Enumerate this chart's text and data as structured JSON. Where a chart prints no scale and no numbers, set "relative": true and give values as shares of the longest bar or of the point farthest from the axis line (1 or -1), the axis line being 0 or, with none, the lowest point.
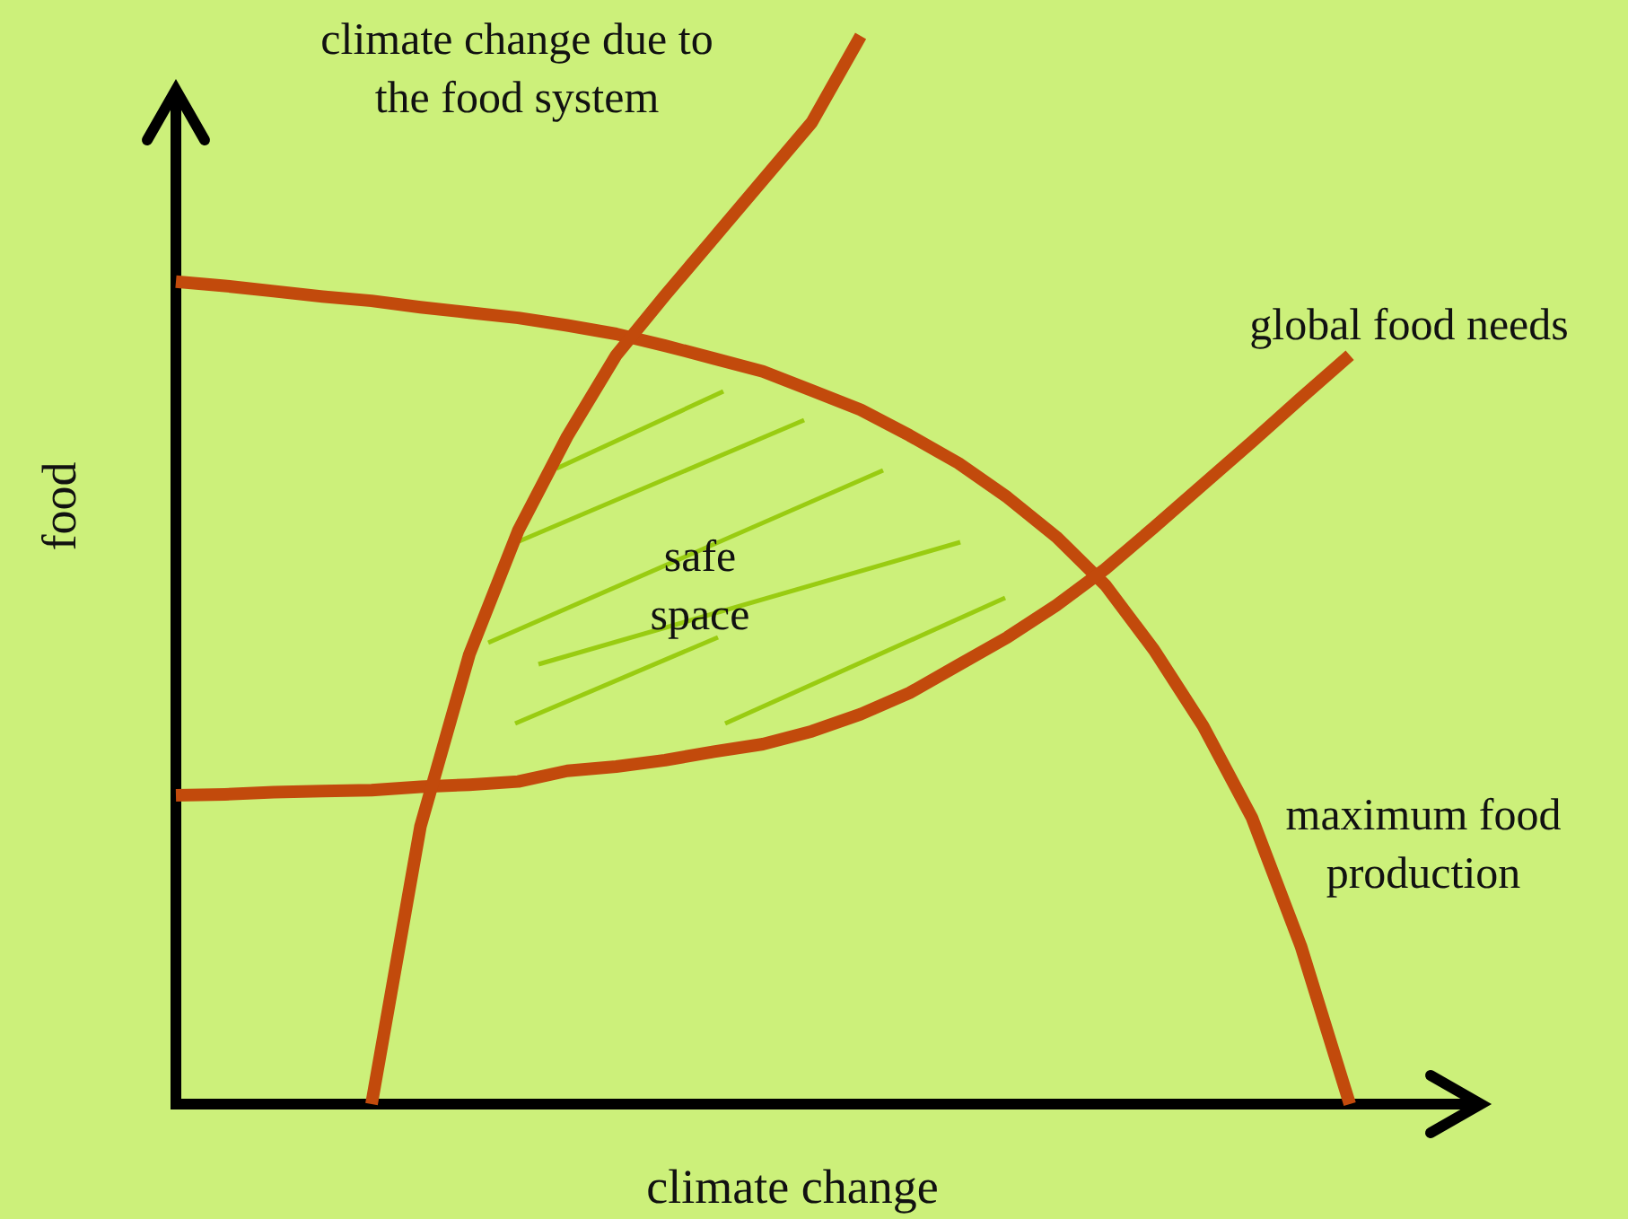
{
  "chart_data": {
    "type": "line",
    "relative": true,
    "xlabel": "climate change",
    "ylabel": "food",
    "tick_labels": false,
    "marker": "none",
    "line_style": "solid",
    "annotations": [
      "safe space"
    ],
    "categories": [
      null,
      null,
      null,
      null,
      null,
      null,
      null,
      null,
      null,
      null,
      null,
      null,
      null,
      null,
      null,
      null,
      null,
      null,
      null,
      null,
      null,
      null,
      null,
      null,
      null
    ],
    "series": [
      {
        "name": "maximum food production",
        "color": "#c24a0c",
        "values": [
          0.77,
          0.766,
          0.761,
          0.756,
          0.752,
          0.746,
          0.741,
          0.736,
          0.729,
          0.721,
          0.71,
          0.698,
          0.686,
          0.668,
          0.65,
          0.626,
          0.6,
          0.568,
          0.531,
          0.486,
          0.425,
          0.354,
          0.268,
          0.148,
          0
        ]
      },
      {
        "name": "global food needs",
        "color": "#c24a0c",
        "values": [
          0.289,
          0.29,
          0.292,
          0.293,
          0.294,
          0.297,
          0.299,
          0.302,
          0.312,
          0.316,
          0.322,
          0.33,
          0.337,
          0.349,
          0.365,
          0.385,
          0.411,
          0.437,
          0.467,
          0.501,
          0.54,
          0.58,
          0.62,
          0.661,
          0.701
        ]
      },
      {
        "name": "climate change due to the food system",
        "color": "#c24a0c",
        "values": [
          null,
          null,
          null,
          null,
          0,
          0.26,
          0.421,
          0.537,
          0.625,
          0.701,
          0.757,
          0.811,
          0.865,
          0.919,
          1.0,
          null,
          null,
          null,
          null,
          null,
          null,
          null,
          null,
          null,
          null
        ]
      }
    ]
  }
}
